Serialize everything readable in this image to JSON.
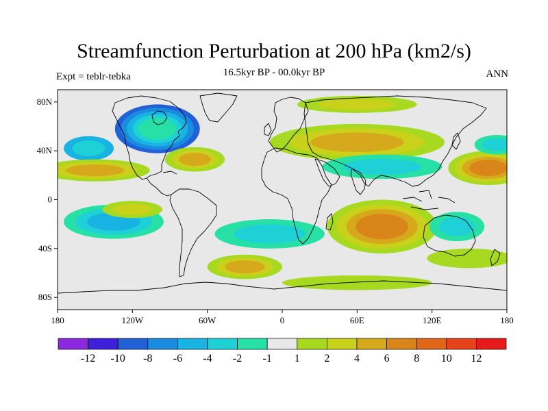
{
  "title": "Streamfunction Perturbation at 200 hPa (km2/s)",
  "subtitle": "16.5kyr BP - 00.0kyr BP",
  "left_label": "Expt = teblr-tebka",
  "right_label": "ANN",
  "map": {
    "projection": "cylindrical-equidistant",
    "lon_range": [
      -180,
      180
    ],
    "lat_range": [
      -90,
      90
    ],
    "x_ticks": [
      {
        "lon": -180,
        "label": "180"
      },
      {
        "lon": -120,
        "label": "120W"
      },
      {
        "lon": -60,
        "label": "60W"
      },
      {
        "lon": 0,
        "label": "0"
      },
      {
        "lon": 60,
        "label": "60E"
      },
      {
        "lon": 120,
        "label": "120E"
      },
      {
        "lon": 180,
        "label": "180"
      }
    ],
    "y_ticks": [
      {
        "lat": 80,
        "label": "80N"
      },
      {
        "lat": 40,
        "label": "40N"
      },
      {
        "lat": 0,
        "label": "0"
      },
      {
        "lat": -40,
        "label": "40S"
      },
      {
        "lat": -80,
        "label": "80S"
      }
    ],
    "colors": {
      "background": "#e8e8e8",
      "coast": "#000000"
    }
  },
  "colorbar": {
    "colors": [
      "#8c29e0",
      "#3f1fd9",
      "#2160d6",
      "#1a8ce0",
      "#19b3e3",
      "#1ed1d6",
      "#26e0a6",
      "#e8e8e8",
      "#a6d91f",
      "#c9d11a",
      "#d6a81c",
      "#d98519",
      "#e06617",
      "#e6431a",
      "#e61a1a"
    ],
    "labels": [
      "-12",
      "-10",
      "-8",
      "-6",
      "-4",
      "-2",
      "-1",
      "1",
      "2",
      "4",
      "6",
      "8",
      "10",
      "12"
    ]
  },
  "anomalies": [
    {
      "name": "north-america-low",
      "lon": -100,
      "lat": 58,
      "rlon": 34,
      "rlat": 20,
      "levels": [
        2,
        3,
        4,
        5,
        6
      ]
    },
    {
      "name": "northeast-pacific-low",
      "lon": -155,
      "lat": 42,
      "rlon": 20,
      "rlat": 10,
      "levels": [
        4,
        5
      ]
    },
    {
      "name": "eurasia-high",
      "lon": 60,
      "lat": 47,
      "rlon": 70,
      "rlat": 15,
      "levels": [
        8,
        9,
        10
      ]
    },
    {
      "name": "asia-low",
      "lon": 80,
      "lat": 27,
      "rlon": 48,
      "rlat": 10,
      "levels": [
        6,
        5
      ]
    },
    {
      "name": "west-pacific-high",
      "lon": 165,
      "lat": 26,
      "rlon": 32,
      "rlat": 14,
      "levels": [
        8,
        9,
        10,
        11
      ]
    },
    {
      "name": "northwest-pacific-low",
      "lon": 172,
      "lat": 45,
      "rlon": 18,
      "rlat": 8,
      "levels": [
        6,
        5
      ]
    },
    {
      "name": "west-atlantic-high",
      "lon": -70,
      "lat": 33,
      "rlon": 24,
      "rlat": 10,
      "levels": [
        8,
        9,
        10
      ]
    },
    {
      "name": "arctic-high",
      "lon": 60,
      "lat": 78,
      "rlon": 48,
      "rlat": 7,
      "levels": [
        8,
        9
      ]
    },
    {
      "name": "central-pacific-high",
      "lon": -150,
      "lat": 24,
      "rlon": 44,
      "rlat": 9,
      "levels": [
        8,
        9,
        10
      ]
    },
    {
      "name": "south-pacific-low",
      "lon": -135,
      "lat": -18,
      "rlon": 40,
      "rlat": 14,
      "levels": [
        6,
        5,
        4
      ]
    },
    {
      "name": "south-america-high",
      "lon": -120,
      "lat": -8,
      "rlon": 24,
      "rlat": 7,
      "levels": [
        8,
        9
      ]
    },
    {
      "name": "south-atlantic-low",
      "lon": -10,
      "lat": -28,
      "rlon": 44,
      "rlat": 12,
      "levels": [
        6,
        5
      ]
    },
    {
      "name": "indian-ocean-high",
      "lon": 80,
      "lat": -22,
      "rlon": 44,
      "rlat": 22,
      "levels": [
        8,
        9,
        10,
        11
      ]
    },
    {
      "name": "southern-high",
      "lon": -30,
      "lat": -55,
      "rlon": 30,
      "rlat": 10,
      "levels": [
        8,
        9,
        10
      ]
    },
    {
      "name": "australia-low",
      "lon": 140,
      "lat": -22,
      "rlon": 22,
      "rlat": 12,
      "levels": [
        6,
        5
      ]
    },
    {
      "name": "south-indian-high",
      "lon": 150,
      "lat": -48,
      "rlon": 34,
      "rlat": 8,
      "levels": [
        8
      ]
    },
    {
      "name": "antarctic-high",
      "lon": 60,
      "lat": -68,
      "rlon": 60,
      "rlat": 6,
      "levels": [
        8
      ]
    }
  ]
}
